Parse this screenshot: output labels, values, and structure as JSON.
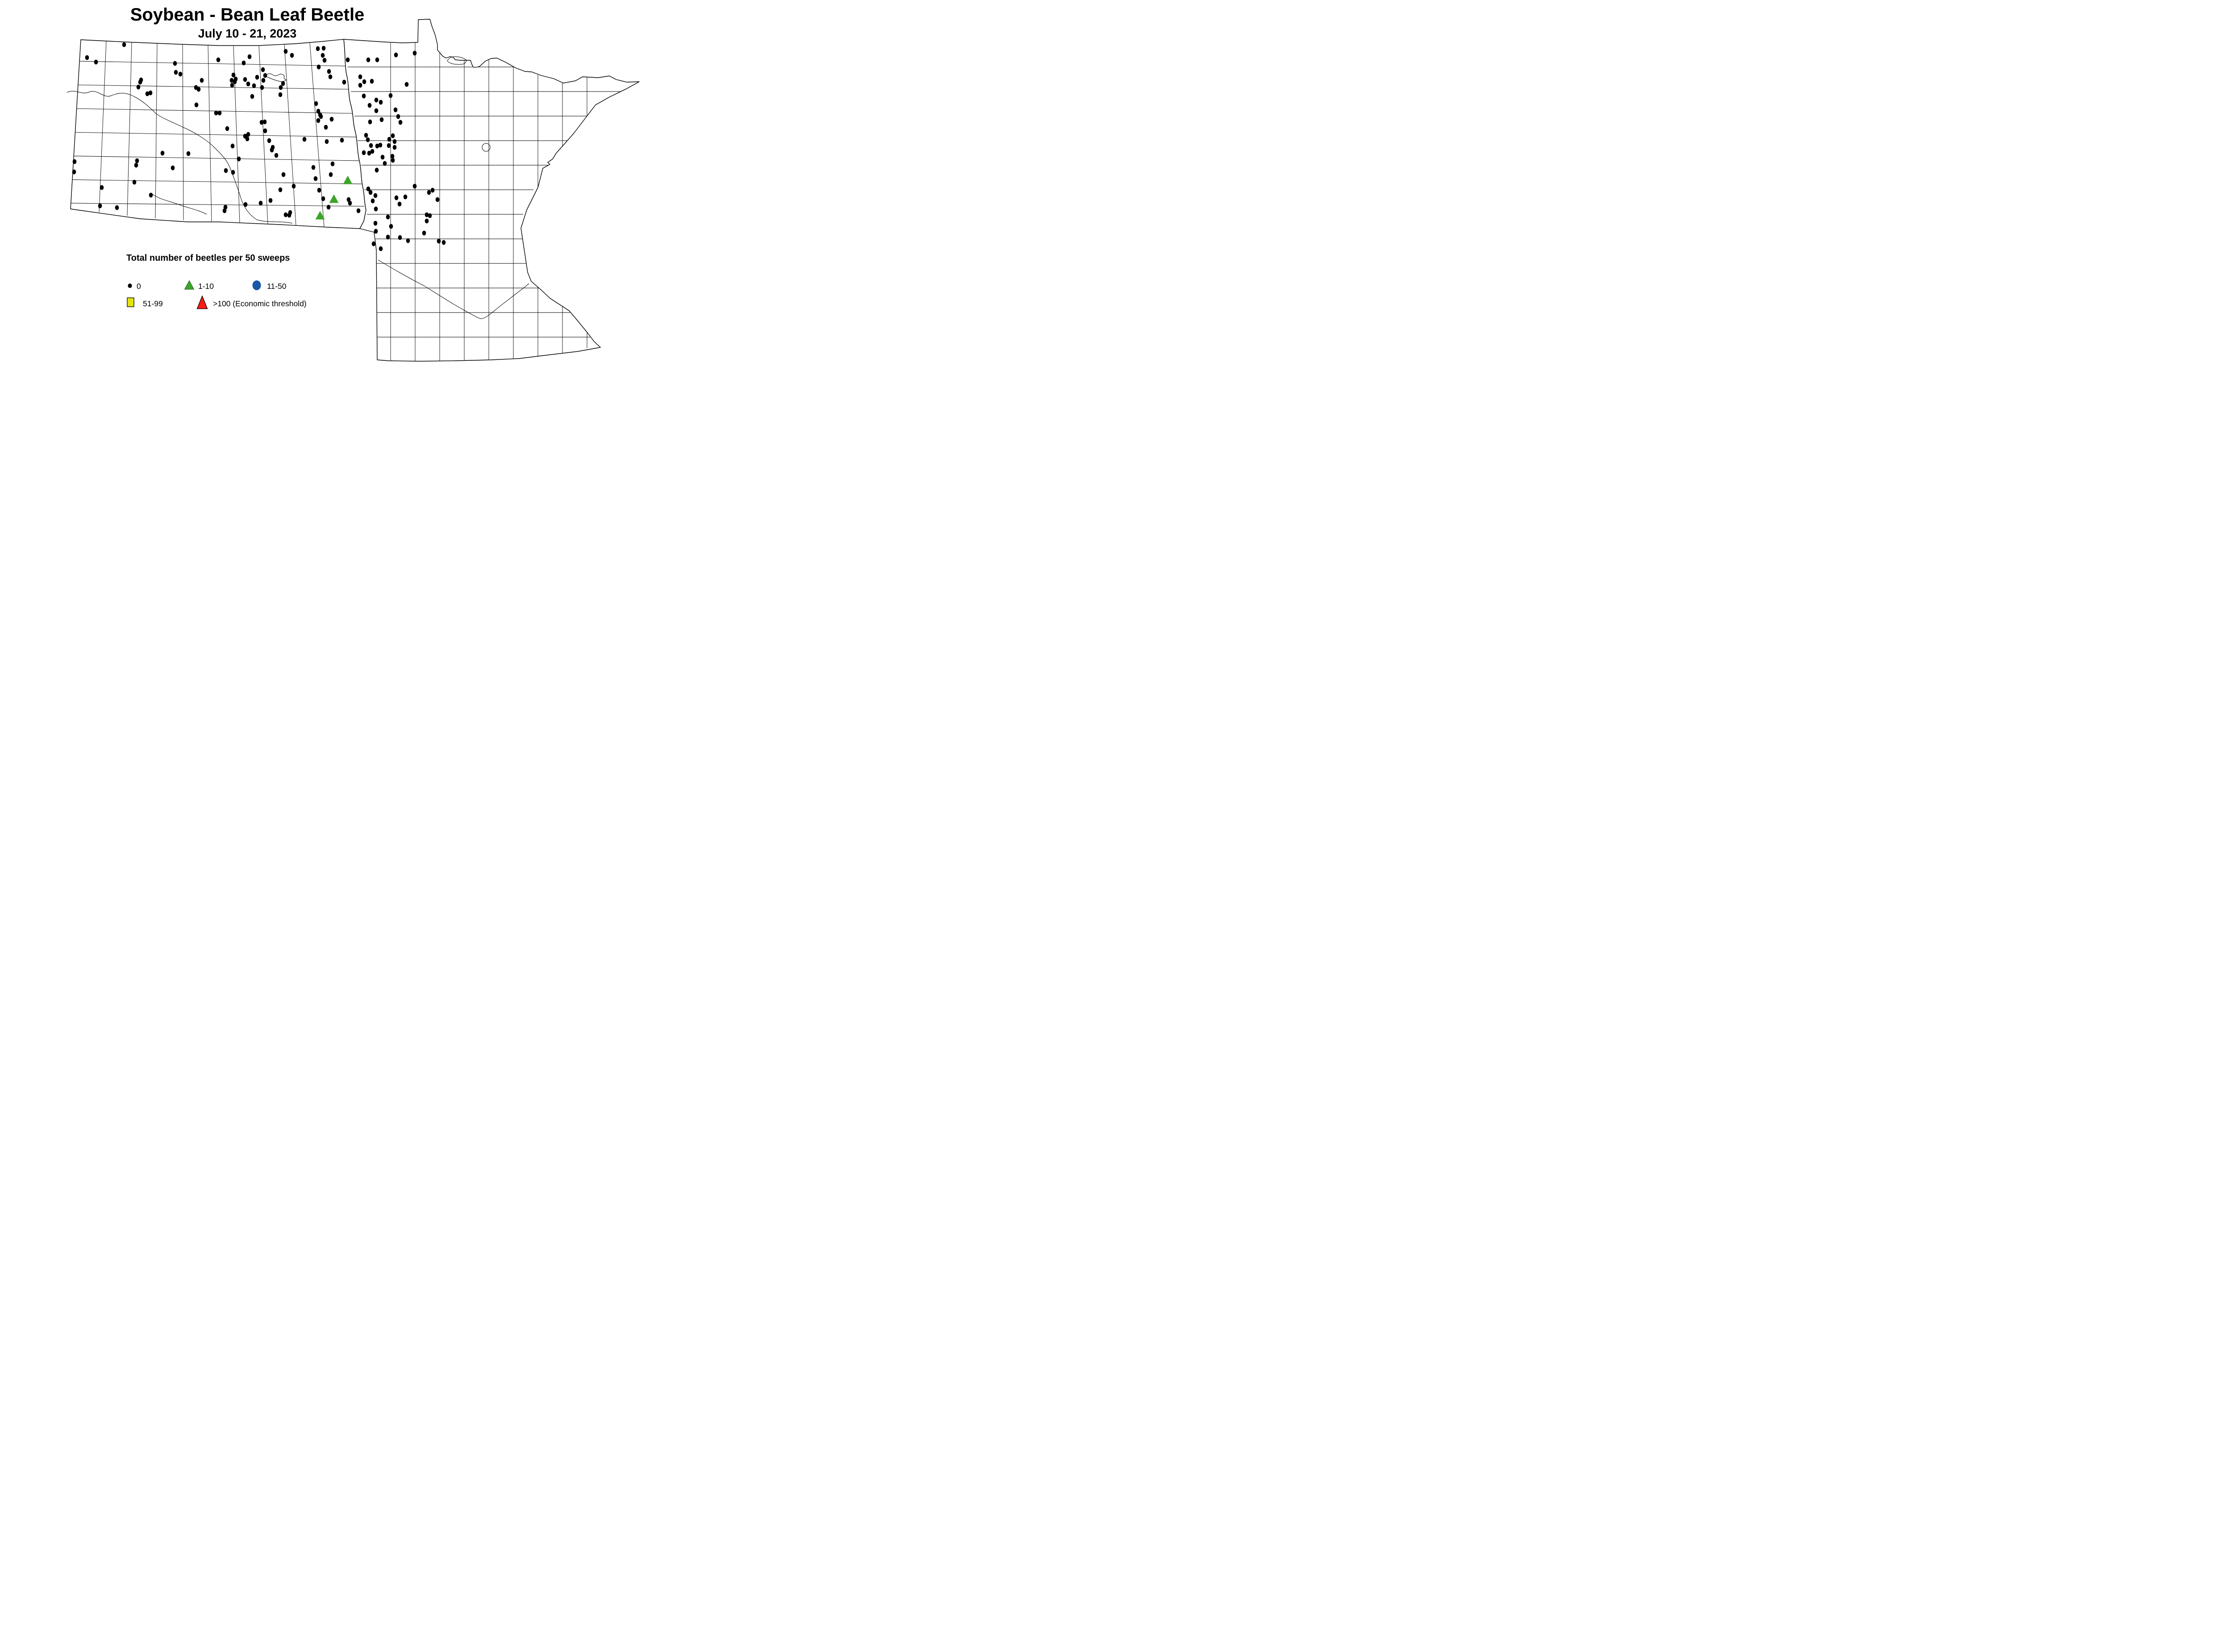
{
  "title": "Soybean - Bean Leaf Beetle",
  "subtitle": "July 10 - 21, 2023",
  "legend": {
    "title": "Total number of beetles per 50 sweeps",
    "items": [
      {
        "label": "0",
        "symbol": "dot-icon",
        "color": "#000000"
      },
      {
        "label": "1-10",
        "symbol": "triangle-icon",
        "color": "#3DA32A"
      },
      {
        "label": "11-50",
        "symbol": "circle-icon",
        "color": "#1A57A8"
      },
      {
        "label": "51-99",
        "symbol": "square-icon",
        "color": "#E3E411"
      },
      {
        "label": ">100 (Economic threshold)",
        "symbol": "triangle-large-icon",
        "color": "#FB1B15"
      }
    ]
  },
  "map_points": {
    "zero": [
      [
        278,
        100
      ],
      [
        195,
        129
      ],
      [
        215,
        139
      ],
      [
        392,
        142
      ],
      [
        394,
        162
      ],
      [
        404,
        166
      ],
      [
        316,
        179
      ],
      [
        314,
        184
      ],
      [
        310,
        195
      ],
      [
        330,
        210
      ],
      [
        337,
        208
      ],
      [
        452,
        180
      ],
      [
        439,
        196
      ],
      [
        445,
        200
      ],
      [
        440,
        235
      ],
      [
        640,
        115
      ],
      [
        654,
        124
      ],
      [
        712,
        109
      ],
      [
        725,
        108
      ],
      [
        723,
        124
      ],
      [
        727,
        135
      ],
      [
        779,
        134
      ],
      [
        714,
        150
      ],
      [
        737,
        160
      ],
      [
        740,
        172
      ],
      [
        489,
        134
      ],
      [
        559,
        127
      ],
      [
        546,
        141
      ],
      [
        589,
        156
      ],
      [
        523,
        168
      ],
      [
        528,
        177
      ],
      [
        519,
        180
      ],
      [
        526,
        183
      ],
      [
        549,
        178
      ],
      [
        520,
        191
      ],
      [
        556,
        188
      ],
      [
        569,
        192
      ],
      [
        576,
        173
      ],
      [
        594,
        169
      ],
      [
        590,
        180
      ],
      [
        587,
        196
      ],
      [
        634,
        187
      ],
      [
        629,
        196
      ],
      [
        628,
        212
      ],
      [
        565,
        216
      ],
      [
        708,
        232
      ],
      [
        713,
        249
      ],
      [
        717,
        257
      ],
      [
        719,
        261
      ],
      [
        713,
        270
      ],
      [
        743,
        267
      ],
      [
        730,
        285
      ],
      [
        484,
        253
      ],
      [
        492,
        253
      ],
      [
        509,
        288
      ],
      [
        586,
        274
      ],
      [
        593,
        273
      ],
      [
        594,
        293
      ],
      [
        556,
        301
      ],
      [
        549,
        305
      ],
      [
        554,
        311
      ],
      [
        682,
        312
      ],
      [
        771,
        184
      ],
      [
        807,
        172
      ],
      [
        807,
        191
      ],
      [
        929,
        119
      ],
      [
        887,
        123
      ],
      [
        825,
        134
      ],
      [
        845,
        134
      ],
      [
        816,
        183
      ],
      [
        833,
        182
      ],
      [
        911,
        189
      ],
      [
        815,
        215
      ],
      [
        875,
        214
      ],
      [
        843,
        224
      ],
      [
        853,
        229
      ],
      [
        828,
        236
      ],
      [
        843,
        248
      ],
      [
        886,
        246
      ],
      [
        892,
        261
      ],
      [
        855,
        268
      ],
      [
        829,
        273
      ],
      [
        897,
        274
      ],
      [
        820,
        303
      ],
      [
        880,
        304
      ],
      [
        167,
        362
      ],
      [
        166,
        385
      ],
      [
        307,
        360
      ],
      [
        305,
        370
      ],
      [
        364,
        343
      ],
      [
        422,
        344
      ],
      [
        387,
        376
      ],
      [
        301,
        408
      ],
      [
        228,
        420
      ],
      [
        338,
        437
      ],
      [
        224,
        461
      ],
      [
        262,
        465
      ],
      [
        521,
        327
      ],
      [
        603,
        315
      ],
      [
        611,
        330
      ],
      [
        609,
        336
      ],
      [
        619,
        348
      ],
      [
        535,
        356
      ],
      [
        506,
        382
      ],
      [
        522,
        386
      ],
      [
        635,
        391
      ],
      [
        702,
        375
      ],
      [
        707,
        400
      ],
      [
        745,
        367
      ],
      [
        741,
        391
      ],
      [
        732,
        317
      ],
      [
        766,
        314
      ],
      [
        658,
        417
      ],
      [
        628,
        425
      ],
      [
        715,
        426
      ],
      [
        724,
        445
      ],
      [
        781,
        447
      ],
      [
        784,
        455
      ],
      [
        606,
        449
      ],
      [
        584,
        455
      ],
      [
        550,
        458
      ],
      [
        505,
        464
      ],
      [
        503,
        472
      ],
      [
        736,
        464
      ],
      [
        650,
        476
      ],
      [
        640,
        481
      ],
      [
        648,
        482
      ],
      [
        803,
        472
      ],
      [
        824,
        313
      ],
      [
        872,
        312
      ],
      [
        884,
        317
      ],
      [
        831,
        326
      ],
      [
        845,
        327
      ],
      [
        852,
        325
      ],
      [
        871,
        326
      ],
      [
        884,
        330
      ],
      [
        815,
        342
      ],
      [
        827,
        343
      ],
      [
        834,
        339
      ],
      [
        857,
        352
      ],
      [
        879,
        350
      ],
      [
        880,
        359
      ],
      [
        862,
        366
      ],
      [
        844,
        381
      ],
      [
        825,
        423
      ],
      [
        830,
        431
      ],
      [
        841,
        438
      ],
      [
        835,
        450
      ],
      [
        842,
        468
      ],
      [
        929,
        417
      ],
      [
        969,
        426
      ],
      [
        961,
        431
      ],
      [
        980,
        447
      ],
      [
        888,
        443
      ],
      [
        908,
        441
      ],
      [
        895,
        457
      ],
      [
        869,
        486
      ],
      [
        956,
        481
      ],
      [
        963,
        483
      ],
      [
        956,
        495
      ],
      [
        841,
        500
      ],
      [
        876,
        507
      ],
      [
        842,
        518
      ],
      [
        869,
        531
      ],
      [
        896,
        532
      ],
      [
        914,
        539
      ],
      [
        950,
        522
      ],
      [
        837,
        546
      ],
      [
        853,
        557
      ],
      [
        983,
        540
      ],
      [
        994,
        543
      ]
    ],
    "one_to_ten": [
      [
        779,
        404
      ],
      [
        748,
        446
      ],
      [
        717,
        483
      ]
    ],
    "eleven_to_fifty": [],
    "fiftyone_to_ninetynine": [],
    "over_hundred": []
  }
}
